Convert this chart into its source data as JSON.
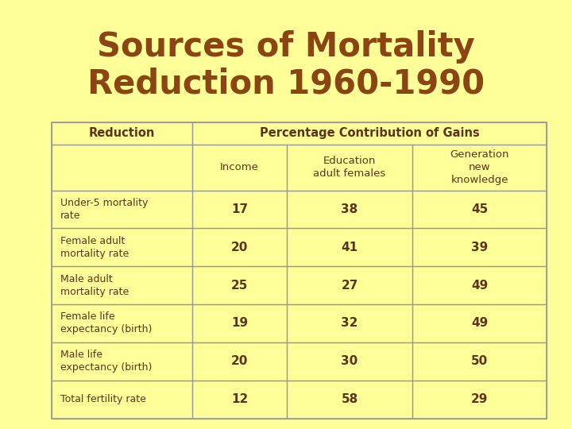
{
  "title": "Sources of Mortality\nReduction 1960-1990",
  "title_color": "#8B4513",
  "bg_color": "#FFFF99",
  "edge_color": "#999999",
  "header1": "Reduction",
  "header2": "Percentage Contribution of Gains",
  "subheaders": [
    "Income",
    "Education\nadult females",
    "Generation\nnew\nknowledge"
  ],
  "rows": [
    {
      "label": "Under-5 mortality\nrate",
      "values": [
        "17",
        "38",
        "45"
      ]
    },
    {
      "label": "Female adult\nmortality rate",
      "values": [
        "20",
        "41",
        "39"
      ]
    },
    {
      "label": "Male adult\nmortality rate",
      "values": [
        "25",
        "27",
        "49"
      ]
    },
    {
      "label": "Female life\nexpectancy (birth)",
      "values": [
        "19",
        "32",
        "49"
      ]
    },
    {
      "label": "Male life\nexpectancy (birth)",
      "values": [
        "20",
        "30",
        "50"
      ]
    },
    {
      "label": "Total fertility rate",
      "values": [
        "12",
        "58",
        "29"
      ]
    }
  ],
  "label_color": "#5C3317",
  "value_color": "#5C3317",
  "header_color": "#5C3317",
  "label_fontsize": 9.0,
  "value_fontsize": 11.0,
  "header_fontsize": 10.5,
  "subheader_fontsize": 9.5,
  "title_fontsize": 30
}
